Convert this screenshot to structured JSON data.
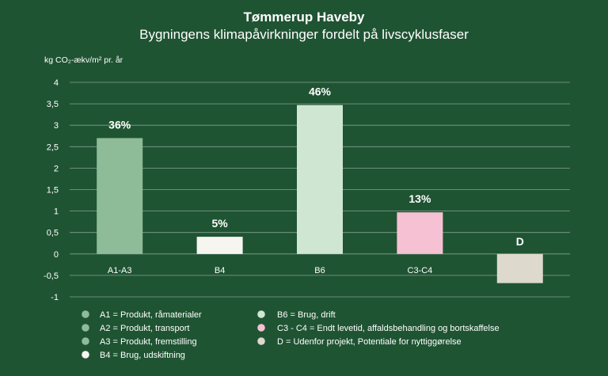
{
  "chart_data": {
    "type": "bar",
    "title": "Tømmerup Haveby",
    "subtitle": "Bygningens klimapåvirkninger fordelt på livscyklusfaser",
    "ylabel": "kg CO₂-ækv/m² pr. år",
    "ylim": [
      -1,
      4
    ],
    "yticks": [
      "4",
      "3,5",
      "3",
      "2,5",
      "2",
      "1,5",
      "1",
      "0,5",
      "0",
      "-0,5",
      "-1"
    ],
    "yticks_values": [
      4,
      3.5,
      3,
      2.5,
      2,
      1.5,
      1,
      0.5,
      0,
      -0.5,
      -1
    ],
    "grid": true,
    "legend_position": "bottom",
    "categories": [
      "A1-A3",
      "B4",
      "B6",
      "C3-C4",
      ""
    ],
    "values": [
      2.7,
      0.4,
      3.47,
      0.97,
      -0.68
    ],
    "data_labels": [
      "36%",
      "5%",
      "46%",
      "13%",
      "D"
    ],
    "colors": [
      "#8fbc98",
      "#f7f5f0",
      "#cfe6d2",
      "#f6c1d3",
      "#ddd9cc"
    ],
    "legend": [
      {
        "text": "A1 = Produkt, råmaterialer",
        "color": "#8fbc98"
      },
      {
        "text": "A2 = Produkt, transport",
        "color": "#8fbc98"
      },
      {
        "text": "A3 = Produkt, fremstilling",
        "color": "#8fbc98"
      },
      {
        "text": "B4 = Brug, udskiftning",
        "color": "#f7f5f0"
      },
      {
        "text": "B6 = Brug, drift",
        "color": "#cfe6d2"
      },
      {
        "text": "C3 - C4 = Endt levetid, affaldsbehandling og bortskaffelse",
        "color": "#f6c1d3"
      },
      {
        "text": "D = Udenfor projekt, Potentiale for nyttiggørelse",
        "color": "#ddd9cc"
      }
    ]
  }
}
